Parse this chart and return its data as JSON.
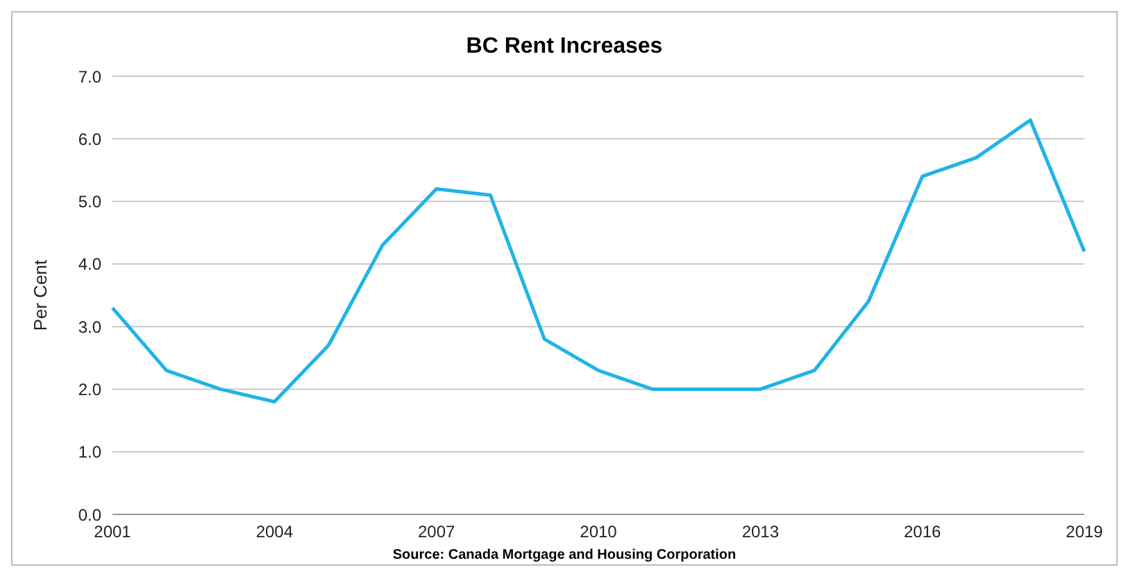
{
  "chart_data": {
    "type": "line",
    "title": "BC Rent Increases",
    "ylabel": "Per Cent",
    "categories": [
      "2001",
      null,
      null,
      "2004",
      null,
      null,
      "2007",
      null,
      null,
      "2010",
      null,
      null,
      "2013",
      null,
      null,
      "2016",
      null,
      null,
      "2019"
    ],
    "series": [
      {
        "color": "#1fb4e6",
        "values": [
          3.3,
          2.3,
          2.0,
          1.8,
          2.7,
          4.3,
          5.2,
          5.1,
          2.8,
          2.3,
          2.0,
          2.0,
          2.0,
          2.3,
          3.4,
          5.4,
          5.7,
          6.3,
          4.2
        ]
      }
    ],
    "ylim": [
      0,
      7
    ],
    "yticks": [
      {
        "value": 0,
        "label": "0.0"
      },
      {
        "value": 1,
        "label": "1.0"
      },
      {
        "value": 2,
        "label": "2.0"
      },
      {
        "value": 3,
        "label": "3.0"
      },
      {
        "value": 4,
        "label": "4.0"
      },
      {
        "value": 5,
        "label": "5.0"
      },
      {
        "value": 6,
        "label": "6.0"
      },
      {
        "value": 7,
        "label": "7.0"
      }
    ],
    "grid": "y",
    "marker": "none",
    "line_style": "solid",
    "legend": false,
    "annotations": [
      "Source: Canada Mortgage and Housing Corporation"
    ]
  }
}
